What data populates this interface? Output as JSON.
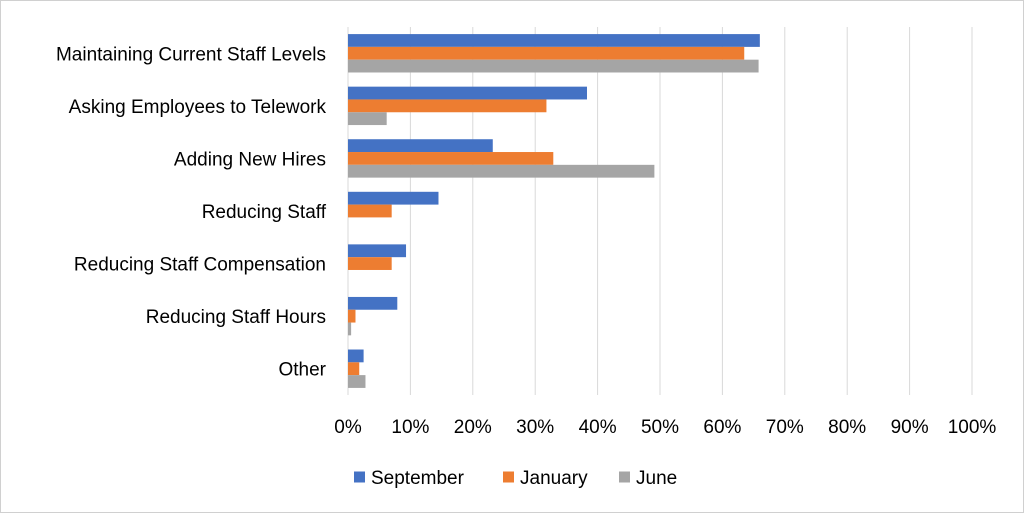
{
  "chart_data": {
    "type": "bar",
    "orientation": "horizontal",
    "title": "",
    "xlabel": "",
    "ylabel": "",
    "categories": [
      "Maintaining Current Staff Levels",
      "Asking Employees to Telework",
      "Adding New Hires",
      "Reducing Staff",
      "Reducing Staff Compensation",
      "Reducing Staff Hours",
      "Other"
    ],
    "series": [
      {
        "name": "September",
        "color": "#4472C4",
        "values": [
          66,
          38.3,
          23.2,
          14.5,
          9.3,
          7.9,
          2.5
        ]
      },
      {
        "name": "January",
        "color": "#ED7D31",
        "values": [
          63.5,
          31.8,
          32.9,
          7.0,
          7.0,
          1.2,
          1.8
        ]
      },
      {
        "name": "June",
        "color": "#A5A5A5",
        "values": [
          65.8,
          6.2,
          49.1,
          0,
          0,
          0.5,
          2.8
        ]
      }
    ],
    "xlim": [
      0,
      100
    ],
    "xticks": [
      "0%",
      "10%",
      "20%",
      "30%",
      "40%",
      "50%",
      "60%",
      "70%",
      "80%",
      "90%",
      "100%"
    ],
    "grid": true,
    "legend": "bottom"
  }
}
